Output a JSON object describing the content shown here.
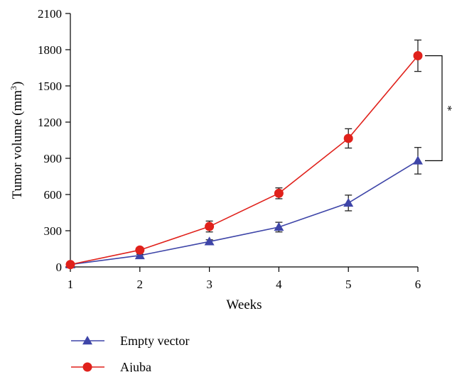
{
  "chart_data": {
    "type": "line",
    "xlabel": "Weeks",
    "ylabel": "Tumor volume (mm",
    "ylabel_superscript": "3",
    "ylabel_suffix": ")",
    "x": [
      1,
      2,
      3,
      4,
      5,
      6
    ],
    "xlim": [
      1,
      6
    ],
    "ylim": [
      0,
      2100
    ],
    "x_ticks": [
      "1",
      "2",
      "3",
      "4",
      "5",
      "6"
    ],
    "y_ticks": [
      "0",
      "300",
      "600",
      "900",
      "1200",
      "1500",
      "1800",
      "2100"
    ],
    "y_tick_values": [
      0,
      300,
      600,
      900,
      1200,
      1500,
      1800,
      2100
    ],
    "grid": false,
    "legend_position": "bottom-left",
    "significance_mark": "*",
    "series": [
      {
        "name": "Empty vector",
        "color": "#3e45a8",
        "marker": "triangle",
        "values": [
          20,
          95,
          210,
          330,
          530,
          880
        ],
        "errors": [
          0,
          10,
          15,
          40,
          65,
          110
        ]
      },
      {
        "name": "Ajuba",
        "color": "#e0211b",
        "marker": "circle",
        "values": [
          20,
          140,
          335,
          610,
          1065,
          1750
        ],
        "errors": [
          0,
          15,
          45,
          45,
          80,
          130
        ]
      }
    ]
  }
}
